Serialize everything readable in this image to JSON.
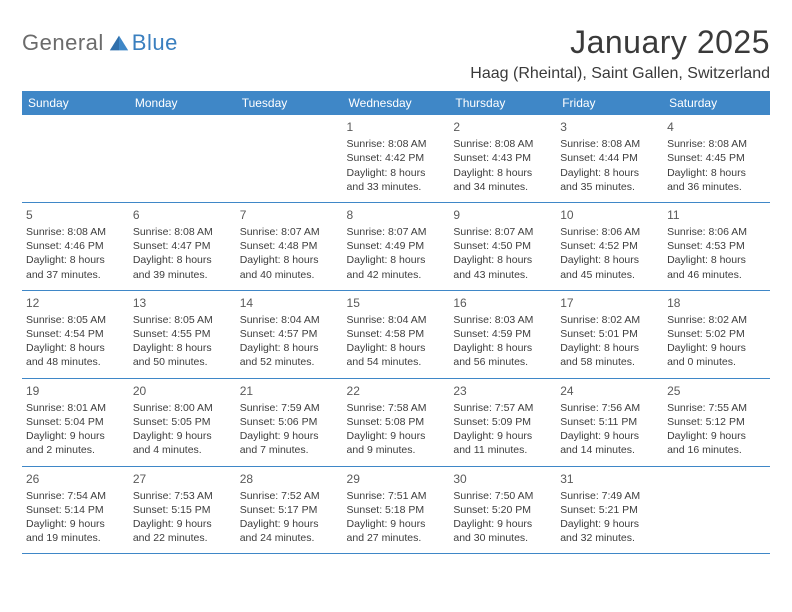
{
  "logo": {
    "text1": "General",
    "text2": "Blue"
  },
  "title": "January 2025",
  "location": "Haag (Rheintal), Saint Gallen, Switzerland",
  "colors": {
    "header_bg": "#3f87c7",
    "header_fg": "#ffffff",
    "text": "#3d3d3d",
    "logo_gray": "#6b6b6b",
    "logo_blue": "#3a7fbf",
    "border": "#3f87c7",
    "background": "#ffffff"
  },
  "weekdays": [
    "Sunday",
    "Monday",
    "Tuesday",
    "Wednesday",
    "Thursday",
    "Friday",
    "Saturday"
  ],
  "weeks": [
    [
      null,
      null,
      null,
      {
        "n": "1",
        "sr": "8:08 AM",
        "ss": "4:42 PM",
        "dh": "8",
        "dm": "33"
      },
      {
        "n": "2",
        "sr": "8:08 AM",
        "ss": "4:43 PM",
        "dh": "8",
        "dm": "34"
      },
      {
        "n": "3",
        "sr": "8:08 AM",
        "ss": "4:44 PM",
        "dh": "8",
        "dm": "35"
      },
      {
        "n": "4",
        "sr": "8:08 AM",
        "ss": "4:45 PM",
        "dh": "8",
        "dm": "36"
      }
    ],
    [
      {
        "n": "5",
        "sr": "8:08 AM",
        "ss": "4:46 PM",
        "dh": "8",
        "dm": "37"
      },
      {
        "n": "6",
        "sr": "8:08 AM",
        "ss": "4:47 PM",
        "dh": "8",
        "dm": "39"
      },
      {
        "n": "7",
        "sr": "8:07 AM",
        "ss": "4:48 PM",
        "dh": "8",
        "dm": "40"
      },
      {
        "n": "8",
        "sr": "8:07 AM",
        "ss": "4:49 PM",
        "dh": "8",
        "dm": "42"
      },
      {
        "n": "9",
        "sr": "8:07 AM",
        "ss": "4:50 PM",
        "dh": "8",
        "dm": "43"
      },
      {
        "n": "10",
        "sr": "8:06 AM",
        "ss": "4:52 PM",
        "dh": "8",
        "dm": "45"
      },
      {
        "n": "11",
        "sr": "8:06 AM",
        "ss": "4:53 PM",
        "dh": "8",
        "dm": "46"
      }
    ],
    [
      {
        "n": "12",
        "sr": "8:05 AM",
        "ss": "4:54 PM",
        "dh": "8",
        "dm": "48"
      },
      {
        "n": "13",
        "sr": "8:05 AM",
        "ss": "4:55 PM",
        "dh": "8",
        "dm": "50"
      },
      {
        "n": "14",
        "sr": "8:04 AM",
        "ss": "4:57 PM",
        "dh": "8",
        "dm": "52"
      },
      {
        "n": "15",
        "sr": "8:04 AM",
        "ss": "4:58 PM",
        "dh": "8",
        "dm": "54"
      },
      {
        "n": "16",
        "sr": "8:03 AM",
        "ss": "4:59 PM",
        "dh": "8",
        "dm": "56"
      },
      {
        "n": "17",
        "sr": "8:02 AM",
        "ss": "5:01 PM",
        "dh": "8",
        "dm": "58"
      },
      {
        "n": "18",
        "sr": "8:02 AM",
        "ss": "5:02 PM",
        "dh": "9",
        "dm": "0"
      }
    ],
    [
      {
        "n": "19",
        "sr": "8:01 AM",
        "ss": "5:04 PM",
        "dh": "9",
        "dm": "2"
      },
      {
        "n": "20",
        "sr": "8:00 AM",
        "ss": "5:05 PM",
        "dh": "9",
        "dm": "4"
      },
      {
        "n": "21",
        "sr": "7:59 AM",
        "ss": "5:06 PM",
        "dh": "9",
        "dm": "7"
      },
      {
        "n": "22",
        "sr": "7:58 AM",
        "ss": "5:08 PM",
        "dh": "9",
        "dm": "9"
      },
      {
        "n": "23",
        "sr": "7:57 AM",
        "ss": "5:09 PM",
        "dh": "9",
        "dm": "11"
      },
      {
        "n": "24",
        "sr": "7:56 AM",
        "ss": "5:11 PM",
        "dh": "9",
        "dm": "14"
      },
      {
        "n": "25",
        "sr": "7:55 AM",
        "ss": "5:12 PM",
        "dh": "9",
        "dm": "16"
      }
    ],
    [
      {
        "n": "26",
        "sr": "7:54 AM",
        "ss": "5:14 PM",
        "dh": "9",
        "dm": "19"
      },
      {
        "n": "27",
        "sr": "7:53 AM",
        "ss": "5:15 PM",
        "dh": "9",
        "dm": "22"
      },
      {
        "n": "28",
        "sr": "7:52 AM",
        "ss": "5:17 PM",
        "dh": "9",
        "dm": "24"
      },
      {
        "n": "29",
        "sr": "7:51 AM",
        "ss": "5:18 PM",
        "dh": "9",
        "dm": "27"
      },
      {
        "n": "30",
        "sr": "7:50 AM",
        "ss": "5:20 PM",
        "dh": "9",
        "dm": "30"
      },
      {
        "n": "31",
        "sr": "7:49 AM",
        "ss": "5:21 PM",
        "dh": "9",
        "dm": "32"
      },
      null
    ]
  ],
  "labels": {
    "sunrise": "Sunrise:",
    "sunset": "Sunset:",
    "daylight": "Daylight:",
    "hours": "hours",
    "and": "and",
    "minutes": "minutes."
  }
}
